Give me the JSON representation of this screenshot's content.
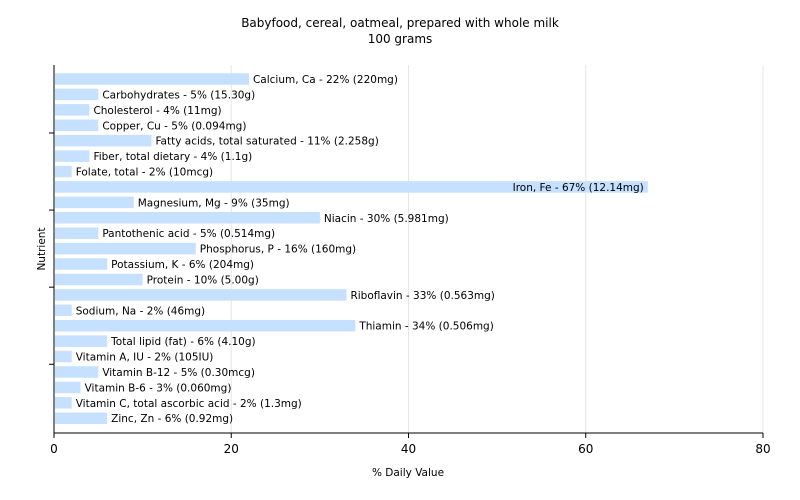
{
  "chart_data": {
    "type": "bar",
    "orientation": "horizontal",
    "title": "Babyfood, cereal, oatmeal, prepared with whole milk",
    "subtitle": "100 grams",
    "xlabel": "% Daily Value",
    "ylabel": "Nutrient",
    "xlim": [
      0,
      80
    ],
    "xticks": [
      0,
      20,
      40,
      60,
      80
    ],
    "grid": true,
    "bar_color": "#c6e0ff",
    "grid_color": "#e6e6e6",
    "categories": [
      "Calcium, Ca",
      "Carbohydrates",
      "Cholesterol",
      "Copper, Cu",
      "Fatty acids, total saturated",
      "Fiber, total dietary",
      "Folate, total",
      "Iron, Fe",
      "Magnesium, Mg",
      "Niacin",
      "Pantothenic acid",
      "Phosphorus, P",
      "Potassium, K",
      "Protein",
      "Riboflavin",
      "Sodium, Na",
      "Thiamin",
      "Total lipid (fat)",
      "Vitamin A, IU",
      "Vitamin B-12",
      "Vitamin B-6",
      "Vitamin C, total ascorbic acid",
      "Zinc, Zn"
    ],
    "values": [
      22,
      5,
      4,
      5,
      11,
      4,
      2,
      67,
      9,
      30,
      5,
      16,
      6,
      10,
      33,
      2,
      34,
      6,
      2,
      5,
      3,
      2,
      6
    ],
    "labels": [
      "Calcium, Ca - 22% (220mg)",
      "Carbohydrates - 5% (15.30g)",
      "Cholesterol - 4% (11mg)",
      "Copper, Cu - 5% (0.094mg)",
      "Fatty acids, total saturated - 11% (2.258g)",
      "Fiber, total dietary - 4% (1.1g)",
      "Folate, total - 2% (10mcg)",
      "Iron, Fe - 67% (12.14mg)",
      "Magnesium, Mg - 9% (35mg)",
      "Niacin - 30% (5.981mg)",
      "Pantothenic acid - 5% (0.514mg)",
      "Phosphorus, P - 16% (160mg)",
      "Potassium, K - 6% (204mg)",
      "Protein - 10% (5.00g)",
      "Riboflavin - 33% (0.563mg)",
      "Sodium, Na - 2% (46mg)",
      "Thiamin - 34% (0.506mg)",
      "Total lipid (fat) - 6% (4.10g)",
      "Vitamin A, IU - 2% (105IU)",
      "Vitamin B-12 - 5% (0.30mcg)",
      "Vitamin B-6 - 3% (0.060mg)",
      "Vitamin C, total ascorbic acid - 2% (1.3mg)",
      "Zinc, Zn - 6% (0.92mg)"
    ]
  }
}
